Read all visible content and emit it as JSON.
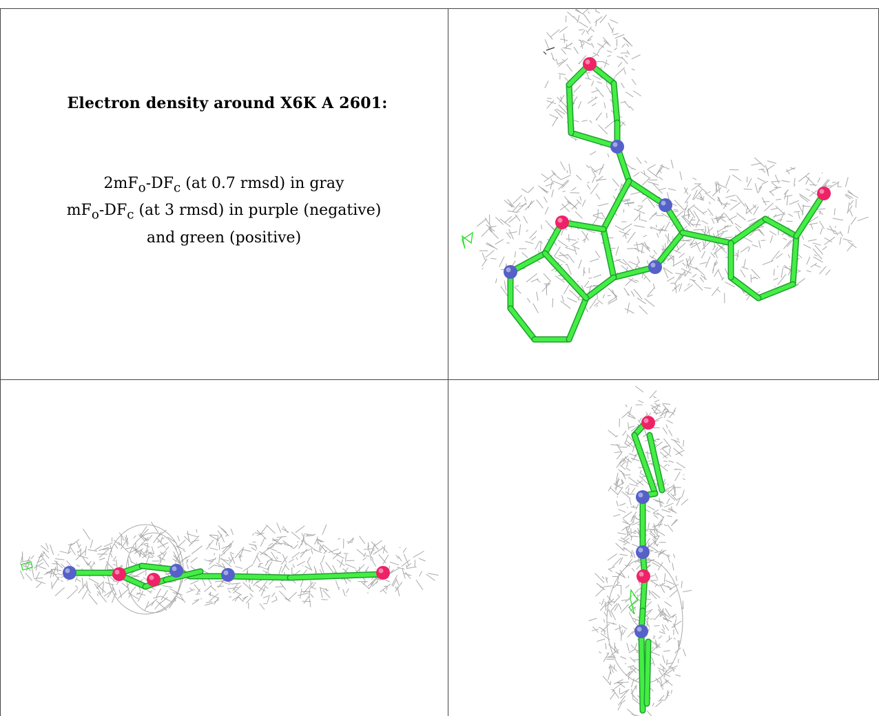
{
  "title": "Electron density around X6K A 2601:",
  "legend": {
    "line1": {
      "pre": "2mF",
      "sub1": "o",
      "mid": "-DF",
      "sub2": "c",
      "post": " (at 0.7 rmsd) in gray"
    },
    "line2": {
      "pre": "mF",
      "sub1": "o",
      "mid": "-DF",
      "sub2": "c",
      "post": " (at 3 rmsd) in purple (negative)"
    },
    "line3": "and green (positive)"
  },
  "views": [
    {
      "name": "top-view"
    },
    {
      "name": "side-view"
    },
    {
      "name": "end-view"
    }
  ],
  "colors": {
    "mesh_gray": "#a8a8a8",
    "mesh_green": "#22dd22",
    "carbon": "#44ee44",
    "oxygen": "#ee2266",
    "nitrogen": "#5560c8",
    "border": "#444444"
  }
}
